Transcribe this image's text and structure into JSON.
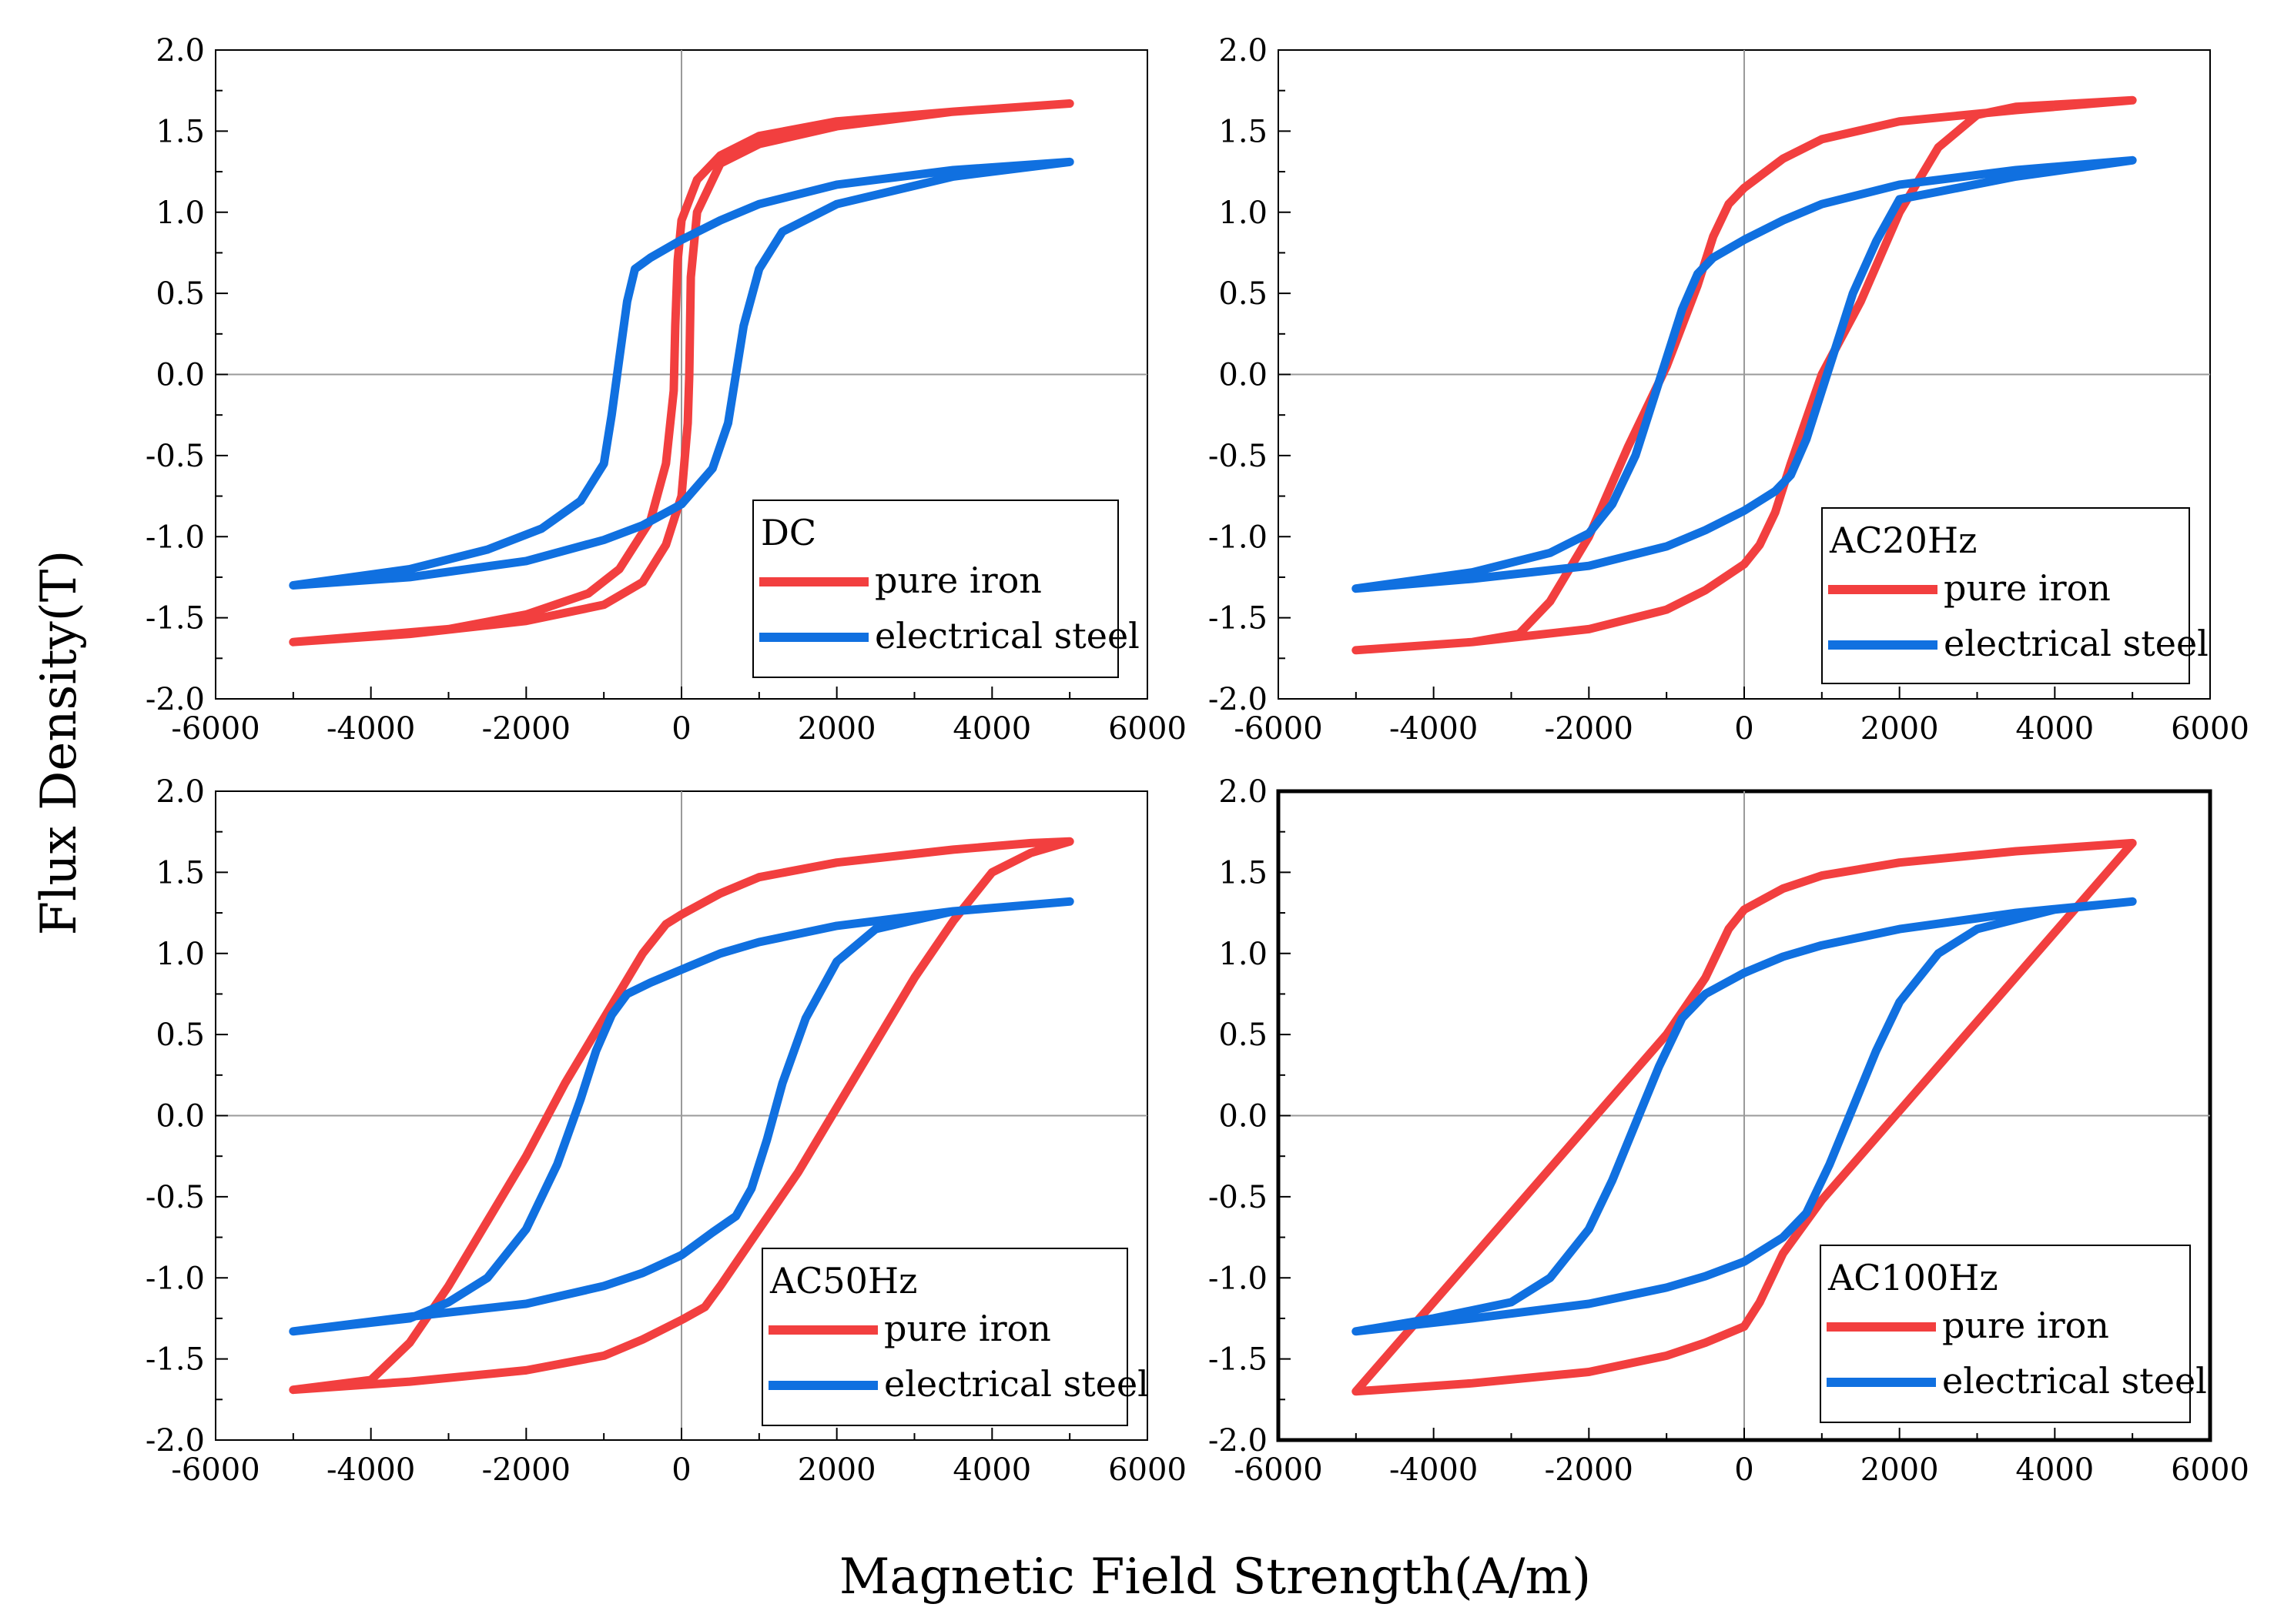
{
  "figure": {
    "xlabel": "Magnetic Field Strength(A/m)",
    "ylabel": "Flux Density(T)"
  },
  "colors": {
    "pure_iron": "#f23f3f",
    "electrical_steel": "#1070e0"
  },
  "chart_data": [
    {
      "type": "line",
      "title": "DC",
      "xlim": [
        -6000,
        6000
      ],
      "ylim": [
        -2.0,
        2.0
      ],
      "xticks": [
        "-6000",
        "-4000",
        "-2000",
        "0",
        "2000",
        "4000",
        "6000"
      ],
      "yticks": [
        "2.0",
        "1.5",
        "1.0",
        "0.5",
        "0.0",
        "-0.5",
        "-1.0",
        "-1.5",
        "-2.0"
      ],
      "legend": "bottom-right",
      "series": [
        {
          "name": "pure iron",
          "color": "#f23f3f",
          "x": [
            -5000,
            -3000,
            -2000,
            -1200,
            -800,
            -400,
            -200,
            -100,
            -80,
            -50,
            0,
            200,
            500,
            1000,
            2000,
            3500,
            5000,
            3500,
            2000,
            1000,
            500,
            200,
            120,
            100,
            80,
            0,
            -200,
            -500,
            -1000,
            -2000,
            -3500,
            -5000
          ],
          "y": [
            -1.65,
            -1.57,
            -1.48,
            -1.35,
            -1.2,
            -0.9,
            -0.55,
            -0.1,
            0.3,
            0.7,
            0.95,
            1.2,
            1.35,
            1.47,
            1.56,
            1.62,
            1.67,
            1.62,
            1.53,
            1.42,
            1.3,
            1.0,
            0.6,
            0.0,
            -0.3,
            -0.75,
            -1.05,
            -1.28,
            -1.42,
            -1.52,
            -1.6,
            -1.65
          ]
        },
        {
          "name": "electrical steel",
          "color": "#1070e0",
          "x": [
            -5000,
            -3500,
            -2500,
            -1800,
            -1300,
            -1000,
            -900,
            -800,
            -700,
            -600,
            -400,
            0,
            500,
            1000,
            2000,
            3500,
            5000,
            3500,
            2000,
            1300,
            1000,
            800,
            700,
            600,
            400,
            0,
            -500,
            -1000,
            -2000,
            -3500,
            -5000
          ],
          "y": [
            -1.3,
            -1.2,
            -1.08,
            -0.95,
            -0.78,
            -0.55,
            -0.25,
            0.1,
            0.45,
            0.65,
            0.72,
            0.83,
            0.95,
            1.05,
            1.17,
            1.26,
            1.31,
            1.22,
            1.05,
            0.88,
            0.65,
            0.3,
            0.0,
            -0.3,
            -0.58,
            -0.8,
            -0.93,
            -1.02,
            -1.15,
            -1.25,
            -1.3
          ]
        }
      ]
    },
    {
      "type": "line",
      "title": "AC20Hz",
      "xlim": [
        -6000,
        6000
      ],
      "ylim": [
        -2.0,
        2.0
      ],
      "xticks": [
        "-6000",
        "-4000",
        "-2000",
        "0",
        "2000",
        "4000",
        "6000"
      ],
      "yticks": [
        "2.0",
        "1.5",
        "1.0",
        "0.5",
        "0.0",
        "-0.5",
        "-1.0",
        "-1.5",
        "-2.0"
      ],
      "legend": "bottom-right",
      "series": [
        {
          "name": "pure iron",
          "color": "#f23f3f",
          "x": [
            -5000,
            -3500,
            -2900,
            -2500,
            -2000,
            -1500,
            -1000,
            -600,
            -400,
            -200,
            0,
            500,
            1000,
            2000,
            3500,
            5000,
            3500,
            3000,
            2500,
            2000,
            1500,
            1000,
            600,
            400,
            200,
            0,
            -500,
            -1000,
            -2000,
            -3500,
            -5000
          ],
          "y": [
            -1.7,
            -1.65,
            -1.6,
            -1.4,
            -1.0,
            -0.45,
            0.05,
            0.55,
            0.85,
            1.05,
            1.15,
            1.33,
            1.45,
            1.56,
            1.63,
            1.69,
            1.65,
            1.6,
            1.4,
            1.0,
            0.45,
            0.0,
            -0.55,
            -0.85,
            -1.05,
            -1.17,
            -1.33,
            -1.45,
            -1.57,
            -1.65,
            -1.7
          ]
        },
        {
          "name": "electrical steel",
          "color": "#1070e0",
          "x": [
            -5000,
            -3500,
            -2500,
            -2000,
            -1700,
            -1400,
            -1200,
            -1000,
            -800,
            -600,
            -400,
            0,
            500,
            1000,
            2000,
            3500,
            5000,
            3500,
            2000,
            1700,
            1400,
            1200,
            1000,
            800,
            600,
            400,
            0,
            -500,
            -1000,
            -2000,
            -3500,
            -5000
          ],
          "y": [
            -1.32,
            -1.22,
            -1.1,
            -0.98,
            -0.8,
            -0.5,
            -0.2,
            0.1,
            0.4,
            0.62,
            0.72,
            0.83,
            0.95,
            1.05,
            1.17,
            1.26,
            1.32,
            1.22,
            1.08,
            0.82,
            0.5,
            0.2,
            -0.1,
            -0.4,
            -0.62,
            -0.72,
            -0.84,
            -0.96,
            -1.06,
            -1.18,
            -1.26,
            -1.32
          ]
        }
      ]
    },
    {
      "type": "line",
      "title": "AC50Hz",
      "xlim": [
        -6000,
        6000
      ],
      "ylim": [
        -2.0,
        2.0
      ],
      "xticks": [
        "-6000",
        "-4000",
        "-2000",
        "0",
        "2000",
        "4000",
        "6000"
      ],
      "yticks": [
        "2.0",
        "1.5",
        "1.0",
        "0.5",
        "0.0",
        "-0.5",
        "-1.0",
        "-1.5",
        "-2.0"
      ],
      "legend": "bottom-right",
      "series": [
        {
          "name": "pure iron",
          "color": "#f23f3f",
          "x": [
            -5000,
            -4000,
            -3500,
            -3000,
            -2500,
            -2000,
            -1500,
            -1000,
            -500,
            -200,
            0,
            500,
            1000,
            2000,
            3500,
            4500,
            5000,
            4500,
            4000,
            3500,
            3000,
            2500,
            2000,
            1500,
            1000,
            500,
            300,
            0,
            -500,
            -1000,
            -2000,
            -3500,
            -5000
          ],
          "y": [
            -1.69,
            -1.63,
            -1.4,
            -1.05,
            -0.65,
            -0.25,
            0.2,
            0.6,
            1.0,
            1.18,
            1.24,
            1.37,
            1.47,
            1.56,
            1.64,
            1.68,
            1.69,
            1.62,
            1.5,
            1.2,
            0.85,
            0.45,
            0.05,
            -0.35,
            -0.7,
            -1.05,
            -1.18,
            -1.26,
            -1.38,
            -1.48,
            -1.57,
            -1.64,
            -1.69
          ]
        },
        {
          "name": "electrical steel",
          "color": "#1070e0",
          "x": [
            -5000,
            -3500,
            -3000,
            -2500,
            -2000,
            -1600,
            -1300,
            -1100,
            -900,
            -700,
            -400,
            0,
            500,
            1000,
            2000,
            3500,
            5000,
            3500,
            2500,
            2000,
            1600,
            1300,
            1100,
            900,
            700,
            400,
            0,
            -500,
            -1000,
            -2000,
            -3500,
            -5000
          ],
          "y": [
            -1.33,
            -1.25,
            -1.15,
            -1.0,
            -0.7,
            -0.3,
            0.1,
            0.4,
            0.62,
            0.75,
            0.82,
            0.9,
            1.0,
            1.07,
            1.17,
            1.26,
            1.32,
            1.26,
            1.15,
            0.95,
            0.6,
            0.2,
            -0.15,
            -0.45,
            -0.62,
            -0.72,
            -0.86,
            -0.97,
            -1.05,
            -1.16,
            -1.24,
            -1.33
          ]
        }
      ]
    },
    {
      "type": "line",
      "title": "AC100Hz",
      "xlim": [
        -6000,
        6000
      ],
      "ylim": [
        -2.0,
        2.0
      ],
      "xticks": [
        "-6000",
        "-4000",
        "-2000",
        "0",
        "2000",
        "4000",
        "6000"
      ],
      "yticks": [
        "2.0",
        "1.5",
        "1.0",
        "0.5",
        "0.0",
        "-0.5",
        "-1.0",
        "-1.5",
        "-2.0"
      ],
      "legend": "bottom-right",
      "series": [
        {
          "name": "pure iron",
          "color": "#f23f3f",
          "x": [
            -5000,
            -4000,
            -3000,
            -2000,
            -1000,
            -500,
            -200,
            0,
            500,
            1000,
            2000,
            3500,
            5000,
            4000,
            3000,
            2000,
            1000,
            500,
            200,
            0,
            -500,
            -1000,
            -2000,
            -3500,
            -5000
          ],
          "y": [
            -1.7,
            -1.15,
            -0.6,
            -0.05,
            0.5,
            0.85,
            1.15,
            1.27,
            1.4,
            1.48,
            1.56,
            1.63,
            1.68,
            1.13,
            0.58,
            0.03,
            -0.52,
            -0.85,
            -1.15,
            -1.3,
            -1.4,
            -1.48,
            -1.58,
            -1.65,
            -1.7
          ]
        },
        {
          "name": "electrical steel",
          "color": "#1070e0",
          "x": [
            -5000,
            -4000,
            -3000,
            -2500,
            -2000,
            -1700,
            -1400,
            -1100,
            -800,
            -500,
            0,
            500,
            1000,
            2000,
            3500,
            5000,
            4000,
            3000,
            2500,
            2000,
            1700,
            1400,
            1100,
            800,
            500,
            0,
            -500,
            -1000,
            -2000,
            -3500,
            -5000
          ],
          "y": [
            -1.33,
            -1.25,
            -1.15,
            -1.0,
            -0.7,
            -0.4,
            -0.05,
            0.3,
            0.6,
            0.75,
            0.88,
            0.98,
            1.05,
            1.15,
            1.25,
            1.32,
            1.27,
            1.15,
            1.0,
            0.7,
            0.4,
            0.05,
            -0.3,
            -0.6,
            -0.75,
            -0.9,
            -0.99,
            -1.06,
            -1.16,
            -1.25,
            -1.33
          ]
        }
      ]
    }
  ]
}
